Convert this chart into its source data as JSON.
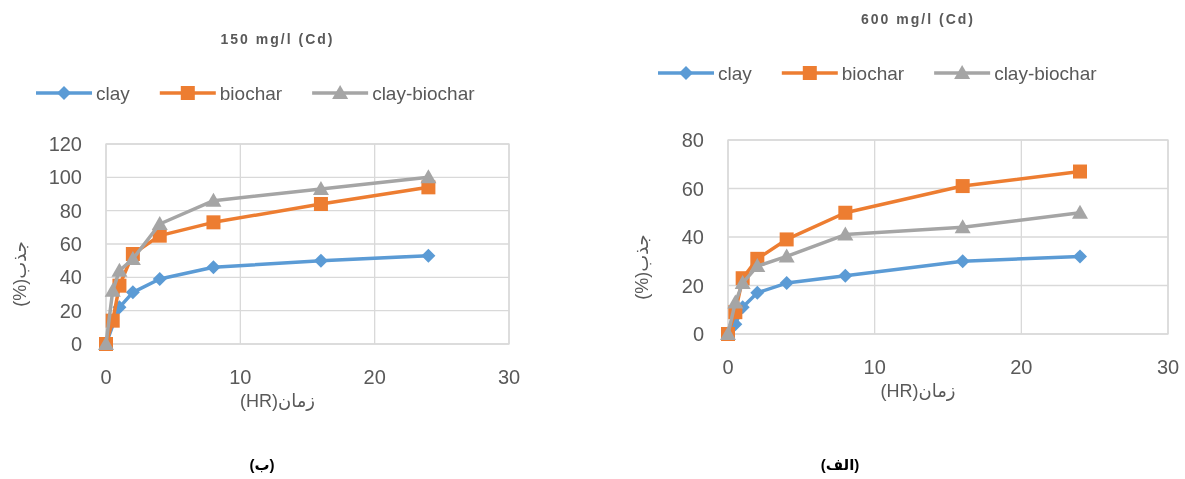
{
  "chart_data": [
    {
      "type": "line",
      "title": "150 mg/l (Cd)",
      "xlabel": "زمان(HR)",
      "ylabel": "جذب(%)",
      "annotations": [
        "(ب)"
      ],
      "x": [
        0,
        0.5,
        1,
        2,
        4,
        8,
        16,
        24
      ],
      "xlim": [
        0,
        30
      ],
      "xticks": [
        0,
        10,
        20,
        30
      ],
      "ylim": [
        0,
        120
      ],
      "yticks": [
        0,
        20,
        40,
        60,
        80,
        100,
        120
      ],
      "grid": true,
      "legend": "top",
      "line_style": "solid",
      "series": [
        {
          "name": "clay",
          "color": "#5b9bd5",
          "marker": "diamond",
          "values": [
            0,
            null,
            22,
            31,
            39,
            46,
            50,
            53
          ]
        },
        {
          "name": "biochar",
          "color": "#ed7d31",
          "marker": "square",
          "values": [
            0,
            14,
            35,
            54,
            65,
            73,
            84,
            94
          ]
        },
        {
          "name": "clay-biochar",
          "color": "#a5a5a5",
          "marker": "triangle",
          "values": [
            0,
            32,
            44,
            51,
            72,
            86,
            93,
            100
          ]
        }
      ]
    },
    {
      "type": "line",
      "title": "600 mg/l (Cd)",
      "xlabel": "زمان(HR)",
      "ylabel": "جذب(%)",
      "annotations": [
        "(الف)"
      ],
      "x": [
        0,
        0.5,
        1,
        2,
        4,
        8,
        16,
        24
      ],
      "xlim": [
        0,
        30
      ],
      "xticks": [
        0,
        10,
        20,
        30
      ],
      "ylim": [
        0,
        80
      ],
      "yticks": [
        0,
        20,
        40,
        60,
        80
      ],
      "grid": true,
      "legend": "top",
      "line_style": "solid",
      "series": [
        {
          "name": "clay",
          "color": "#5b9bd5",
          "marker": "diamond",
          "values": [
            0,
            4,
            11,
            17,
            21,
            24,
            30,
            32
          ]
        },
        {
          "name": "biochar",
          "color": "#ed7d31",
          "marker": "square",
          "values": [
            0,
            9,
            23,
            31,
            39,
            50,
            61,
            67
          ]
        },
        {
          "name": "clay-biochar",
          "color": "#a5a5a5",
          "marker": "triangle",
          "values": [
            0,
            13,
            21,
            28,
            32,
            41,
            44,
            50
          ]
        }
      ]
    }
  ]
}
